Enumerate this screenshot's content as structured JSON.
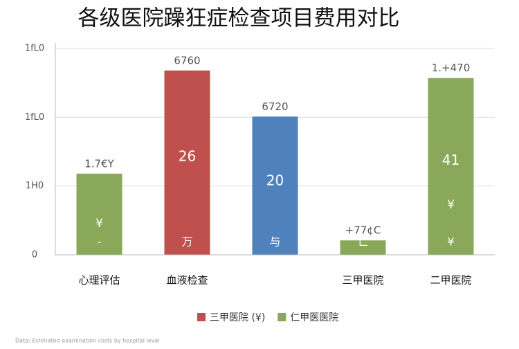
{
  "chart_data": {
    "type": "bar",
    "title": "各级医院躁狂症检查项目费用对比",
    "categories": [
      "心理评估",
      "血液检查",
      null,
      "三甲医院",
      "二甲医院"
    ],
    "values": [
      1.18,
      2.68,
      2.01,
      0.21,
      2.57
    ],
    "colors": [
      "#8aa85a",
      "#c0504d",
      "#4f81bd",
      "#8aa85a",
      "#8aa85a"
    ],
    "bar_top_labels": [
      "1.7€Y",
      "6760",
      "6720",
      "+77¢C",
      "1.+470"
    ],
    "bar_mid_labels": [
      null,
      "26",
      "20",
      null,
      "41"
    ],
    "bar_low_labels": [
      "¥",
      null,
      null,
      null,
      "¥"
    ],
    "bar_foot_labels": [
      "-",
      "万",
      "与",
      "亡",
      "¥"
    ],
    "ylim": [
      0,
      3
    ],
    "yticks": [
      0,
      {
        "value": 1,
        "label": "1H0"
      },
      {
        "value": 2,
        "label": "1fL0"
      },
      {
        "value": 3,
        "label": "1fL0"
      }
    ],
    "grid": true,
    "legend": [
      {
        "name": "三甲医院 (¥)",
        "color": "#c0504d"
      },
      {
        "name": "仁甲医医院",
        "color": "#8aa85a"
      }
    ],
    "note": "Data: Estimated examination costs by hospital level"
  }
}
